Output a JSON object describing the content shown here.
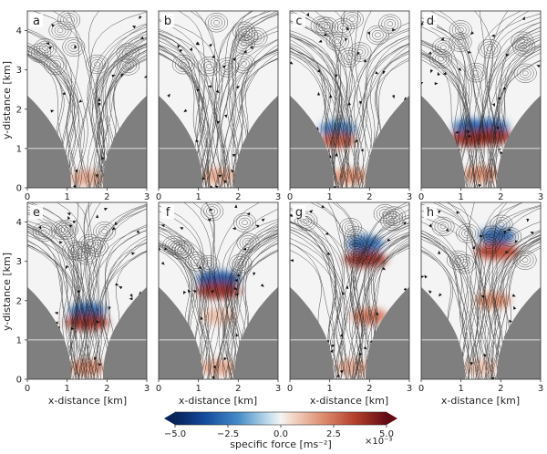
{
  "figure": {
    "panel_letters": [
      "a",
      "b",
      "c",
      "d",
      "e",
      "f",
      "g",
      "h"
    ],
    "xlabel": "x-distance [km]",
    "ylabel": "y-distance [km]",
    "xticks": [
      "0",
      "1",
      "2",
      "3"
    ],
    "yticks": [
      "0",
      "1",
      "2",
      "3",
      "4"
    ],
    "colorbar": {
      "label": "specific force [ms⁻²]",
      "exponent": "×10⁻³",
      "ticks": [
        "−5.0",
        "−2.5",
        "0.0",
        "2.5",
        "5.0"
      ],
      "range": [
        -5.0,
        5.0
      ],
      "colormap": "diverging blue-white-red (extended both ends)"
    },
    "colors": {
      "terrain": "#7f7f7f",
      "negative": "#1f5fa8",
      "positive": "#b2402c",
      "streamline": "#1a1a1a"
    }
  },
  "chart_data": {
    "type": "heatmap",
    "description_units": "specific force x 10^-3 m s^-2 over x-distance [km] and y-distance [km]",
    "xlim": [
      0,
      3
    ],
    "ylim": [
      0,
      4.5
    ],
    "grid": true,
    "layout": "2 rows x 4 columns",
    "panels": [
      {
        "label": "a",
        "features": [
          {
            "x": 1.5,
            "y": 0.25,
            "value": 1.5
          }
        ]
      },
      {
        "label": "b",
        "features": [
          {
            "x": 1.5,
            "y": 0.3,
            "value": 1.5
          }
        ]
      },
      {
        "label": "c",
        "features": [
          {
            "x": 1.2,
            "y": 1.5,
            "value": -2.5
          },
          {
            "x": 1.2,
            "y": 1.2,
            "value": 3.0
          },
          {
            "x": 1.5,
            "y": 0.3,
            "value": 2.0
          }
        ]
      },
      {
        "label": "d",
        "features": [
          {
            "x": 1.25,
            "y": 1.55,
            "value": -3.0
          },
          {
            "x": 1.75,
            "y": 1.55,
            "value": -3.0
          },
          {
            "x": 1.25,
            "y": 1.25,
            "value": 4.0
          },
          {
            "x": 1.75,
            "y": 1.3,
            "value": 4.0
          },
          {
            "x": 1.5,
            "y": 0.35,
            "value": 2.0
          }
        ]
      },
      {
        "label": "e",
        "features": [
          {
            "x": 1.5,
            "y": 1.75,
            "value": -3.0
          },
          {
            "x": 1.5,
            "y": 1.45,
            "value": 4.0
          },
          {
            "x": 1.5,
            "y": 0.3,
            "value": 2.0
          }
        ]
      },
      {
        "label": "f",
        "features": [
          {
            "x": 1.5,
            "y": 2.55,
            "value": -3.5
          },
          {
            "x": 1.5,
            "y": 2.25,
            "value": 4.0
          },
          {
            "x": 1.5,
            "y": 1.6,
            "value": 1.0
          },
          {
            "x": 1.5,
            "y": 0.3,
            "value": 1.5
          }
        ]
      },
      {
        "label": "g",
        "features": [
          {
            "x": 1.9,
            "y": 3.45,
            "value": -3.0
          },
          {
            "x": 1.9,
            "y": 3.05,
            "value": 4.0
          },
          {
            "x": 2.0,
            "y": 1.6,
            "value": 2.5
          },
          {
            "x": 1.6,
            "y": 0.3,
            "value": 1.5
          }
        ]
      },
      {
        "label": "h",
        "features": [
          {
            "x": 1.9,
            "y": 3.65,
            "value": -3.0
          },
          {
            "x": 1.9,
            "y": 3.25,
            "value": 3.5
          },
          {
            "x": 1.8,
            "y": 2.0,
            "value": 2.0
          },
          {
            "x": 1.5,
            "y": 0.3,
            "value": 1.0
          }
        ]
      }
    ]
  }
}
